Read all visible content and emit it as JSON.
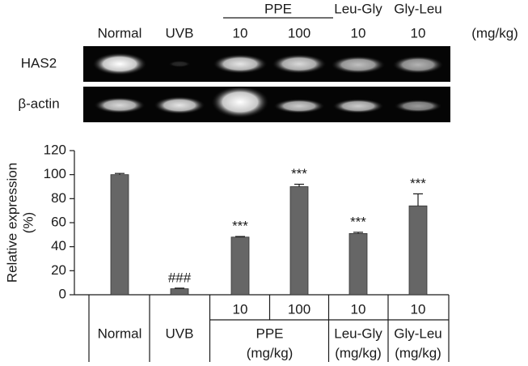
{
  "gel": {
    "lanes": [
      "Normal",
      "UVB",
      "10",
      "100",
      "10",
      "10"
    ],
    "groups": [
      "PPE",
      "Leu-Gly",
      "Gly-Leu"
    ],
    "unit": "(mg/kg)",
    "rows": [
      "HAS2",
      "β-actin"
    ]
  },
  "chart_data": {
    "type": "bar",
    "ylabel": [
      "Relative expression",
      "(%)"
    ],
    "ylim": [
      0,
      120
    ],
    "yticks": [
      0,
      20,
      40,
      60,
      80,
      100,
      120
    ],
    "color": "#666666",
    "groups": [
      {
        "name": "Normal",
        "doses": [
          null
        ],
        "values": [
          100
        ],
        "errors": [
          1
        ],
        "annotations": [
          null
        ]
      },
      {
        "name": "UVB",
        "doses": [
          null
        ],
        "values": [
          5
        ],
        "errors": [
          0.5
        ],
        "annotations": [
          "###"
        ]
      },
      {
        "name": "PPE",
        "unit": "(mg/kg)",
        "doses": [
          "10",
          "100"
        ],
        "values": [
          48,
          90
        ],
        "errors": [
          0.5,
          2
        ],
        "annotations": [
          "***",
          "***"
        ]
      },
      {
        "name": "Leu-Gly",
        "unit": "(mg/kg)",
        "doses": [
          "10"
        ],
        "values": [
          51
        ],
        "errors": [
          1
        ],
        "annotations": [
          "***"
        ]
      },
      {
        "name": "Gly-Leu",
        "unit": "(mg/kg)",
        "doses": [
          "10"
        ],
        "values": [
          74
        ],
        "errors": [
          10
        ],
        "annotations": [
          "***"
        ]
      }
    ]
  }
}
